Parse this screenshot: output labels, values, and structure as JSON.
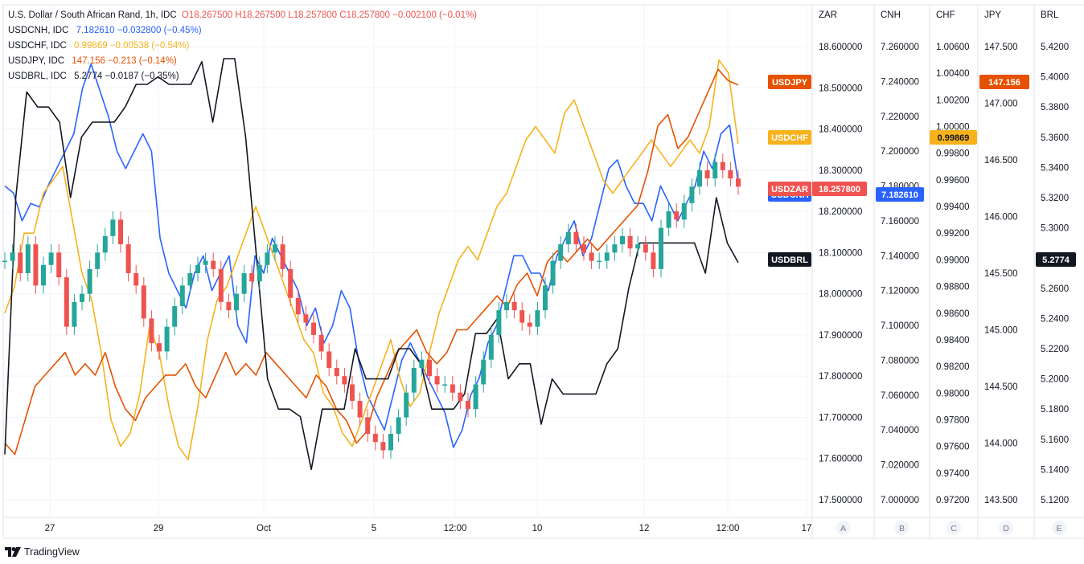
{
  "legend": {
    "main": {
      "title": "U.S. Dollar / South African Rand, 1h, IDC",
      "o_label": "O",
      "o": "18.267500",
      "h_label": "H",
      "h": "18.267500",
      "l_label": "L",
      "l": "18.257800",
      "c_label": "C",
      "c": "18.257800",
      "chg": "−0.002100 (−0.01%)"
    },
    "rows": [
      {
        "name": "USDCNH, IDC",
        "value": "7.182610",
        "chg": "−0.032800 (−0.45%)",
        "color": "#2962ff"
      },
      {
        "name": "USDCHF, IDC",
        "value": "0.99869",
        "chg": "−0.00538 (−0.54%)",
        "color": "#f7b21c"
      },
      {
        "name": "USDJPY, IDC",
        "value": "147.156",
        "chg": "−0.213 (−0.14%)",
        "color": "#e65100"
      },
      {
        "name": "USDBRL, IDC",
        "value": "5.2774",
        "chg": "−0.0187 (−0.35%)",
        "color": "#131722"
      }
    ]
  },
  "brand": {
    "name": "TradingView"
  },
  "chart_data": {
    "type": "line",
    "x_ticks": [
      "27",
      "29",
      "Oct",
      "5",
      "12:00",
      "10",
      "12",
      "12:00",
      "17"
    ],
    "axes": [
      {
        "id": "ZAR",
        "ticks": [
          "18.600000",
          "18.500000",
          "18.400000",
          "18.300000",
          "18.200000",
          "18.100000",
          "18.000000",
          "17.900000",
          "17.800000",
          "17.700000",
          "17.600000",
          "17.500000"
        ],
        "footer": "A"
      },
      {
        "id": "CNH",
        "ticks": [
          "7.260000",
          "7.240000",
          "7.220000",
          "7.200000",
          "7.180000",
          "7.160000",
          "7.140000",
          "7.120000",
          "7.100000",
          "7.080000",
          "7.060000",
          "7.040000",
          "7.020000",
          "7.000000"
        ],
        "footer": "B"
      },
      {
        "id": "CHF",
        "ticks": [
          "1.00600",
          "1.00400",
          "1.00200",
          "1.00000",
          "0.99800",
          "0.99600",
          "0.99400",
          "0.99200",
          "0.99000",
          "0.98800",
          "0.98600",
          "0.98400",
          "0.98200",
          "0.98000",
          "0.97800",
          "0.97600",
          "0.97400",
          "0.97200"
        ],
        "footer": "C"
      },
      {
        "id": "JPY",
        "ticks": [
          "147.500",
          "147.000",
          "146.500",
          "146.000",
          "145.500",
          "145.000",
          "144.500",
          "144.000",
          "143.500"
        ],
        "footer": "D"
      },
      {
        "id": "BRL",
        "ticks": [
          "5.4200",
          "5.4000",
          "5.3800",
          "5.3600",
          "5.3400",
          "5.3200",
          "5.3000",
          "5.2800",
          "5.2600",
          "5.2400",
          "5.2200",
          "5.2000",
          "5.1800",
          "5.1600",
          "5.1400",
          "5.1200"
        ],
        "footer": "E"
      }
    ],
    "series": [
      {
        "name": "USDZAR",
        "type": "candles",
        "color_up": "#26a69a",
        "color_down": "#ef5350",
        "last": "18.257800",
        "closes": [
          18.08,
          18.1,
          18.05,
          18.12,
          18.02,
          18.07,
          18.1,
          18.04,
          17.92,
          17.98,
          18.0,
          18.06,
          18.1,
          18.14,
          18.18,
          18.12,
          18.05,
          18.02,
          17.94,
          17.88,
          17.86,
          17.92,
          17.97,
          18.02,
          18.05,
          18.07,
          18.08,
          18.06,
          17.98,
          17.96,
          18.0,
          18.05,
          18.03,
          18.07,
          18.1,
          18.12,
          18.06,
          17.99,
          17.95,
          17.93,
          17.9,
          17.86,
          17.82,
          17.8,
          17.78,
          17.74,
          17.7,
          17.66,
          17.64,
          17.62,
          17.66,
          17.7,
          17.76,
          17.82,
          17.84,
          17.8,
          17.78,
          17.78,
          17.76,
          17.74,
          17.72,
          17.78,
          17.84,
          17.9,
          17.96,
          17.98,
          17.96,
          17.93,
          17.92,
          17.96,
          18.02,
          18.08,
          18.12,
          18.15,
          18.12,
          18.1,
          18.08,
          18.08,
          18.1,
          18.12,
          18.14,
          18.11,
          18.12,
          18.1,
          18.06,
          18.16,
          18.2,
          18.18,
          18.22,
          18.26,
          18.3,
          18.28,
          18.32,
          18.3,
          18.28,
          18.26
        ]
      },
      {
        "name": "USDCNH",
        "color": "#2962ff",
        "last": "7.182610",
        "values": [
          7.18,
          7.176,
          7.16,
          7.17,
          7.168,
          7.18,
          7.19,
          7.2,
          7.21,
          7.236,
          7.25,
          7.235,
          7.22,
          7.2,
          7.19,
          7.2,
          7.21,
          7.2,
          7.15,
          7.13,
          7.12,
          7.11,
          7.13,
          7.14,
          7.12,
          7.13,
          7.14,
          7.1,
          7.09,
          7.14,
          7.13,
          7.15,
          7.14,
          7.13,
          7.12,
          7.1,
          7.11,
          7.09,
          7.1,
          7.12,
          7.11,
          7.08,
          7.06,
          7.05,
          7.04,
          7.06,
          7.08,
          7.09,
          7.08,
          7.07,
          7.06,
          7.05,
          7.03,
          7.04,
          7.06,
          7.07,
          7.09,
          7.1,
          7.12,
          7.14,
          7.14,
          7.13,
          7.13,
          7.12,
          7.14,
          7.15,
          7.16,
          7.14,
          7.15,
          7.17,
          7.19,
          7.195,
          7.18,
          7.17,
          7.17,
          7.16,
          7.18,
          7.17,
          7.16,
          7.17,
          7.18,
          7.2,
          7.19,
          7.21,
          7.215,
          7.182
        ]
      },
      {
        "name": "USDCHF",
        "color": "#f7b21c",
        "last": "0.99869",
        "values": [
          0.986,
          0.988,
          0.992,
          0.992,
          0.995,
          0.996,
          0.997,
          0.993,
          0.989,
          0.987,
          0.983,
          0.978,
          0.976,
          0.977,
          0.98,
          0.985,
          0.983,
          0.979,
          0.976,
          0.975,
          0.979,
          0.984,
          0.987,
          0.988,
          0.99,
          0.992,
          0.994,
          0.992,
          0.99,
          0.988,
          0.986,
          0.984,
          0.983,
          0.98,
          0.979,
          0.977,
          0.976,
          0.978,
          0.98,
          0.982,
          0.984,
          0.981,
          0.979,
          0.98,
          0.983,
          0.986,
          0.988,
          0.99,
          0.991,
          0.99,
          0.992,
          0.994,
          0.995,
          0.997,
          0.999,
          1.0,
          0.999,
          0.998,
          1.001,
          1.002,
          1.0,
          0.998,
          0.996,
          0.995,
          0.996,
          0.997,
          0.998,
          0.999,
          0.998,
          0.997,
          0.998,
          0.999,
          0.998,
          1.0,
          1.005,
          1.004,
          0.99869
        ]
      },
      {
        "name": "USDJPY",
        "color": "#e65100",
        "last": "147.156",
        "values": [
          144.0,
          143.9,
          144.2,
          144.5,
          144.6,
          144.7,
          144.8,
          144.6,
          144.7,
          144.6,
          144.8,
          144.5,
          144.3,
          144.2,
          144.4,
          144.5,
          144.6,
          144.6,
          144.7,
          144.5,
          144.4,
          144.6,
          144.8,
          144.6,
          144.7,
          144.6,
          144.8,
          144.7,
          144.6,
          144.5,
          144.4,
          144.6,
          144.5,
          144.3,
          144.2,
          144.0,
          144.1,
          144.4,
          144.6,
          144.8,
          144.9,
          145.0,
          144.8,
          144.7,
          144.8,
          145.0,
          145.0,
          145.1,
          145.2,
          145.3,
          145.2,
          145.4,
          145.5,
          145.3,
          145.6,
          145.7,
          145.6,
          145.7,
          145.8,
          145.7,
          145.8,
          145.9,
          146.0,
          146.1,
          146.4,
          146.8,
          146.9,
          146.6,
          146.7,
          146.9,
          147.1,
          147.3,
          147.2,
          147.16
        ]
      },
      {
        "name": "USDBRL",
        "color": "#131722",
        "last": "5.2774",
        "values": [
          5.15,
          5.32,
          5.39,
          5.38,
          5.38,
          5.37,
          5.32,
          5.36,
          5.37,
          5.37,
          5.37,
          5.38,
          5.395,
          5.395,
          5.4,
          5.395,
          5.395,
          5.395,
          5.41,
          5.37,
          5.412,
          5.412,
          5.36,
          5.28,
          5.2,
          5.18,
          5.18,
          5.175,
          5.14,
          5.18,
          5.18,
          5.18,
          5.22,
          5.2,
          5.2,
          5.2,
          5.22,
          5.22,
          5.21,
          5.18,
          5.18,
          5.18,
          5.19,
          5.23,
          5.23,
          5.24,
          5.2,
          5.21,
          5.21,
          5.17,
          5.2,
          5.19,
          5.19,
          5.19,
          5.19,
          5.21,
          5.22,
          5.26,
          5.29,
          5.29,
          5.29,
          5.29,
          5.29,
          5.29,
          5.27,
          5.32,
          5.29,
          5.277
        ]
      }
    ]
  }
}
